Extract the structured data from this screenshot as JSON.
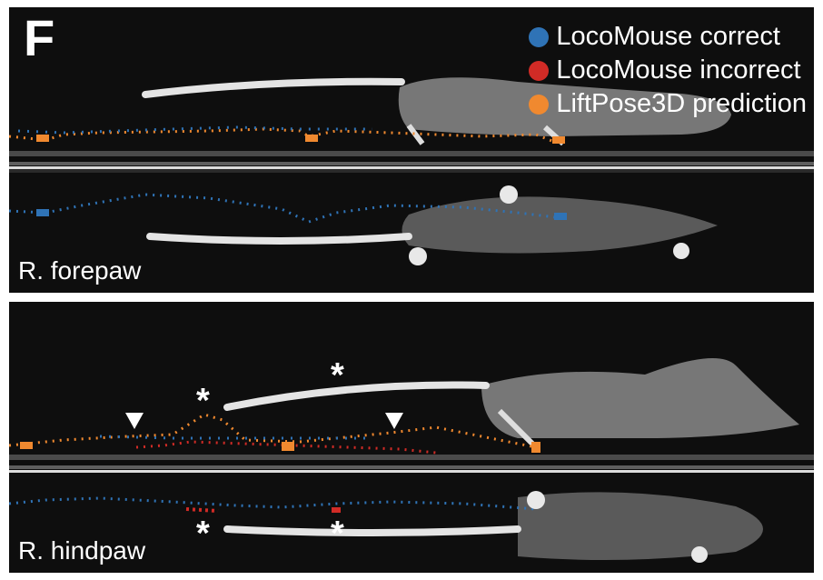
{
  "figure": {
    "panel_letter": "F"
  },
  "legend": {
    "items": [
      {
        "label": "LocoMouse correct",
        "color": "#2f73b6"
      },
      {
        "label": "LocoMouse incorrect",
        "color": "#d12b26"
      },
      {
        "label": "LiftPose3D prediction",
        "color": "#f0892f"
      }
    ]
  },
  "panels": {
    "top": {
      "label": "R. forepaw"
    },
    "bottom": {
      "label": "R. hindpaw",
      "asterisk": "*"
    }
  },
  "colors": {
    "background": "#0e0e0e",
    "mouse": "#9a9a9a",
    "tail": "#e6e6e6"
  }
}
